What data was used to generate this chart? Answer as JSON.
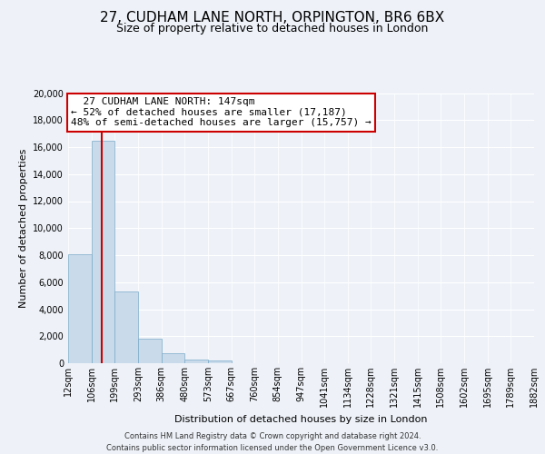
{
  "title": "27, CUDHAM LANE NORTH, ORPINGTON, BR6 6BX",
  "subtitle": "Size of property relative to detached houses in London",
  "xlabel": "Distribution of detached houses by size in London",
  "ylabel": "Number of detached properties",
  "bar_values": [
    8100,
    16500,
    5300,
    1800,
    750,
    300,
    200,
    0,
    0,
    0,
    0,
    0,
    0,
    0,
    0,
    0,
    0,
    0,
    0,
    0
  ],
  "bar_labels": [
    "12sqm",
    "106sqm",
    "199sqm",
    "293sqm",
    "386sqm",
    "480sqm",
    "573sqm",
    "667sqm",
    "760sqm",
    "854sqm",
    "947sqm",
    "1041sqm",
    "1134sqm",
    "1228sqm",
    "1321sqm",
    "1415sqm",
    "1508sqm",
    "1602sqm",
    "1695sqm",
    "1789sqm",
    "1882sqm"
  ],
  "bar_color": "#c9daea",
  "bar_edge_color": "#7aaac8",
  "property_line_label": "27 CUDHAM LANE NORTH: 147sqm",
  "smaller_pct": "52%",
  "smaller_count": "17,187",
  "larger_pct": "48%",
  "larger_count": "15,757",
  "annotation_box_color": "#ffffff",
  "annotation_box_edge": "#cc0000",
  "line_color": "#cc0000",
  "ylim": [
    0,
    20000
  ],
  "yticks": [
    0,
    2000,
    4000,
    6000,
    8000,
    10000,
    12000,
    14000,
    16000,
    18000,
    20000
  ],
  "footer1": "Contains HM Land Registry data © Crown copyright and database right 2024.",
  "footer2": "Contains public sector information licensed under the Open Government Licence v3.0.",
  "background_color": "#eef2f8",
  "grid_color": "#ffffff",
  "title_fontsize": 11,
  "subtitle_fontsize": 9,
  "ylabel_fontsize": 8,
  "xlabel_fontsize": 8,
  "tick_fontsize": 7,
  "annot_fontsize": 8,
  "footer_fontsize": 6
}
